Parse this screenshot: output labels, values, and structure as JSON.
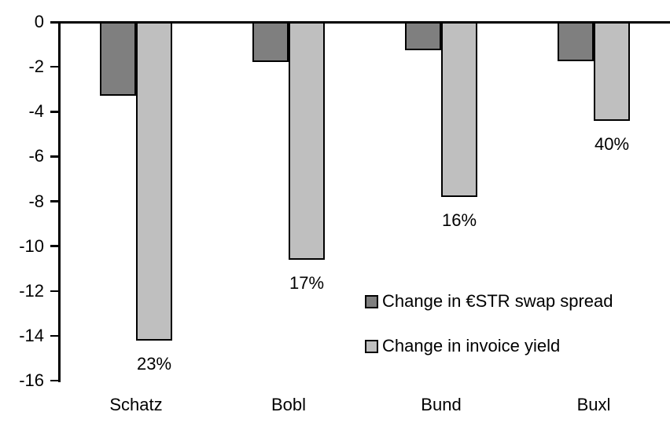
{
  "chart_data": {
    "type": "bar",
    "title": "",
    "xlabel": "",
    "ylabel": "",
    "categories": [
      "Schatz",
      "Bobl",
      "Bund",
      "Buxl"
    ],
    "series": [
      {
        "name": "Change in €STR swap spread",
        "color": "#7f7f7f",
        "values": [
          -3.3,
          -1.8,
          -1.25,
          -1.75
        ]
      },
      {
        "name": "Change in invoice yield",
        "color": "#bfbfbf",
        "values": [
          -14.2,
          -10.6,
          -7.8,
          -4.4
        ]
      }
    ],
    "bar_labels": {
      "series": "Change in invoice yield",
      "values": [
        "23%",
        "17%",
        "16%",
        "40%"
      ]
    },
    "yticks": [
      0,
      -2,
      -4,
      -6,
      -8,
      -10,
      -12,
      -14,
      -16
    ],
    "ytick_labels": [
      "0",
      "-2",
      "-4",
      "-6",
      "-8",
      "-10",
      "-12",
      "-14",
      "-16"
    ],
    "ylim": [
      -16,
      0
    ],
    "grid": false,
    "legend_position": "center-right-inside",
    "bar_border_color": "#000000",
    "axis_color": "#000000"
  }
}
